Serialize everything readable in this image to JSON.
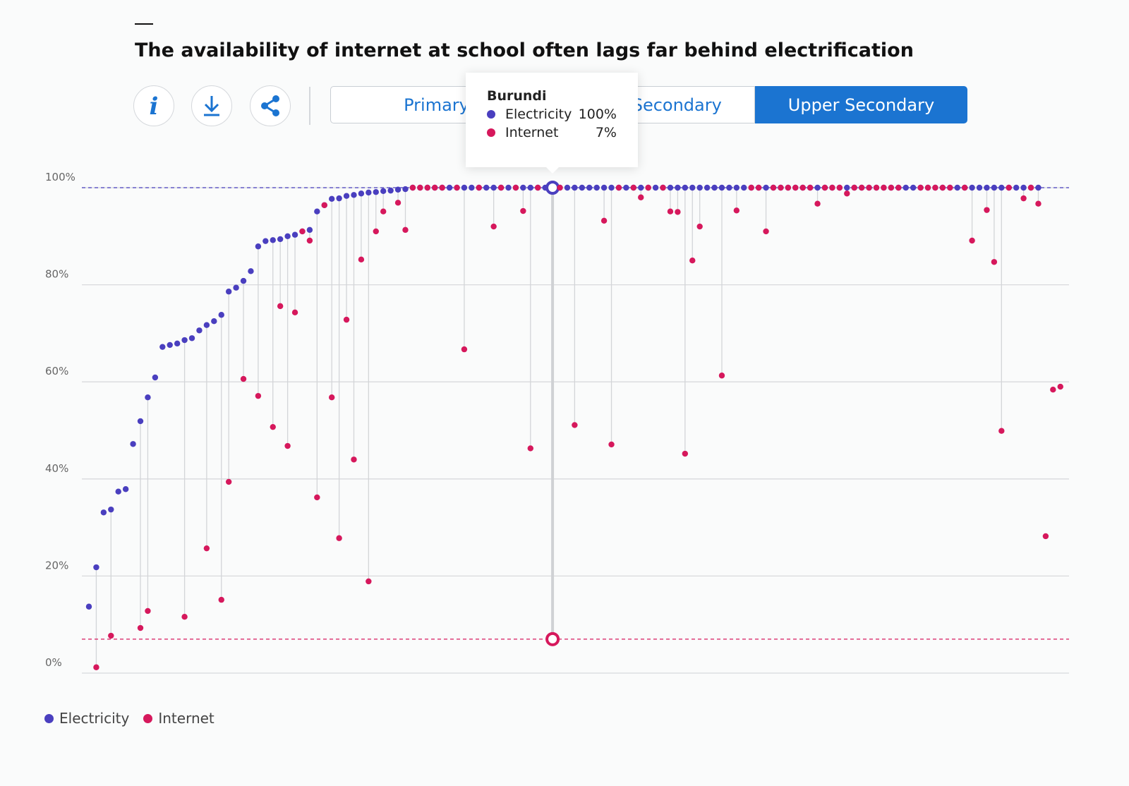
{
  "header": {
    "title": "The availability of internet at school often lags far behind electrification",
    "buttons": [
      "Primary",
      "Lower Secondary",
      "Upper Secondary"
    ]
  },
  "chart_data": {
    "type": "dot-plot",
    "categories": [
      null,
      null,
      null,
      null,
      null,
      null,
      null,
      null,
      null,
      null,
      null,
      null,
      null,
      null,
      null,
      null,
      null,
      null,
      null,
      null,
      null,
      null,
      null,
      null,
      null,
      null,
      null,
      null,
      null,
      null,
      null,
      null,
      null,
      null,
      null,
      null,
      null,
      null,
      null,
      null,
      null,
      null,
      null,
      null,
      null,
      null,
      null,
      null,
      null,
      null,
      null,
      null,
      null,
      null,
      null,
      null,
      null,
      null,
      null,
      null,
      null,
      null,
      null,
      "Burundi",
      null,
      null,
      null,
      null,
      null,
      null,
      null,
      null,
      null,
      null,
      null,
      null,
      null,
      null,
      null,
      null,
      null,
      null,
      null,
      null,
      null,
      null,
      null,
      null,
      null,
      null,
      null,
      null,
      null,
      null,
      null,
      null,
      null,
      null,
      null,
      null,
      null,
      null,
      null,
      null,
      null,
      null,
      null,
      null,
      null,
      null,
      null,
      null,
      null,
      null,
      null,
      null,
      null,
      null,
      null,
      null,
      null,
      null,
      null,
      null,
      null,
      null,
      null,
      null,
      null,
      null,
      null,
      null,
      null
    ],
    "series": [
      {
        "name": "Electricity",
        "color": "#4a3fbf",
        "values": [
          13.7,
          21.8,
          33.1,
          33.7,
          37.4,
          37.9,
          47.2,
          51.9,
          56.8,
          60.9,
          67.2,
          67.6,
          67.9,
          68.6,
          69.0,
          70.6,
          71.7,
          72.5,
          73.8,
          78.6,
          79.4,
          80.8,
          82.8,
          87.9,
          89.0,
          89.2,
          89.4,
          90.0,
          90.3,
          91.0,
          91.3,
          95.1,
          96.4,
          97.7,
          97.8,
          98.3,
          98.5,
          98.8,
          99.0,
          99.1,
          99.3,
          99.4,
          99.6,
          99.7,
          100,
          100,
          100,
          100,
          100,
          100,
          100,
          100,
          100,
          100,
          100,
          100,
          100,
          100,
          100,
          100,
          100,
          100,
          100,
          100,
          100,
          100,
          100,
          100,
          100,
          100,
          100,
          100,
          100,
          100,
          100,
          100,
          100,
          100,
          100,
          100,
          100,
          100,
          100,
          100,
          100,
          100,
          100,
          100,
          100,
          100,
          100,
          100,
          100,
          100,
          100,
          100,
          100,
          100,
          100,
          100,
          100,
          100,
          100,
          100,
          100,
          100,
          100,
          100,
          100,
          100,
          100,
          100,
          100,
          100,
          100,
          100,
          100,
          100,
          100,
          100,
          100,
          100,
          100,
          100,
          100,
          100,
          100,
          100,
          100,
          100,
          null,
          null,
          null
        ]
      },
      {
        "name": "Internet",
        "color": "#d6185c",
        "values": [
          null,
          1.2,
          null,
          7.7,
          null,
          null,
          null,
          9.3,
          12.8,
          null,
          null,
          null,
          null,
          11.6,
          null,
          null,
          25.7,
          null,
          15.1,
          39.4,
          null,
          60.6,
          null,
          57.1,
          null,
          50.7,
          75.6,
          46.8,
          74.3,
          91.0,
          89.1,
          36.2,
          96.4,
          56.8,
          27.8,
          72.8,
          44.0,
          85.2,
          18.9,
          91.0,
          95.1,
          null,
          96.9,
          91.3,
          100,
          100,
          100,
          100,
          100,
          null,
          100,
          66.7,
          null,
          100,
          null,
          92.0,
          100,
          null,
          100,
          95.2,
          46.3,
          100,
          null,
          7,
          100,
          null,
          51.1,
          null,
          null,
          null,
          93.2,
          47.1,
          100,
          null,
          100,
          98.0,
          100,
          null,
          100,
          95.1,
          95.0,
          45.2,
          85.0,
          92.0,
          null,
          null,
          61.3,
          null,
          95.3,
          null,
          100,
          100,
          91.0,
          100,
          100,
          100,
          100,
          100,
          100,
          96.7,
          100,
          100,
          100,
          98.8,
          100,
          100,
          100,
          100,
          100,
          100,
          100,
          null,
          null,
          100,
          100,
          100,
          100,
          100,
          null,
          100,
          89.1,
          null,
          95.4,
          84.7,
          49.9,
          100,
          null,
          97.8,
          100,
          96.7,
          28.2,
          58.4,
          59.0
        ]
      }
    ],
    "ylim": [
      0,
      100
    ],
    "yticks": [
      {
        "value": 0,
        "label": "0%"
      },
      {
        "value": 20,
        "label": "20%"
      },
      {
        "value": 40,
        "label": "40%"
      },
      {
        "value": 60,
        "label": "60%"
      },
      {
        "value": 80,
        "label": "80%"
      },
      {
        "value": 100,
        "label": "100%"
      }
    ],
    "grid": true,
    "tooltip": {
      "title": "Burundi",
      "value_labels": [
        "100%",
        "7%"
      ]
    }
  }
}
